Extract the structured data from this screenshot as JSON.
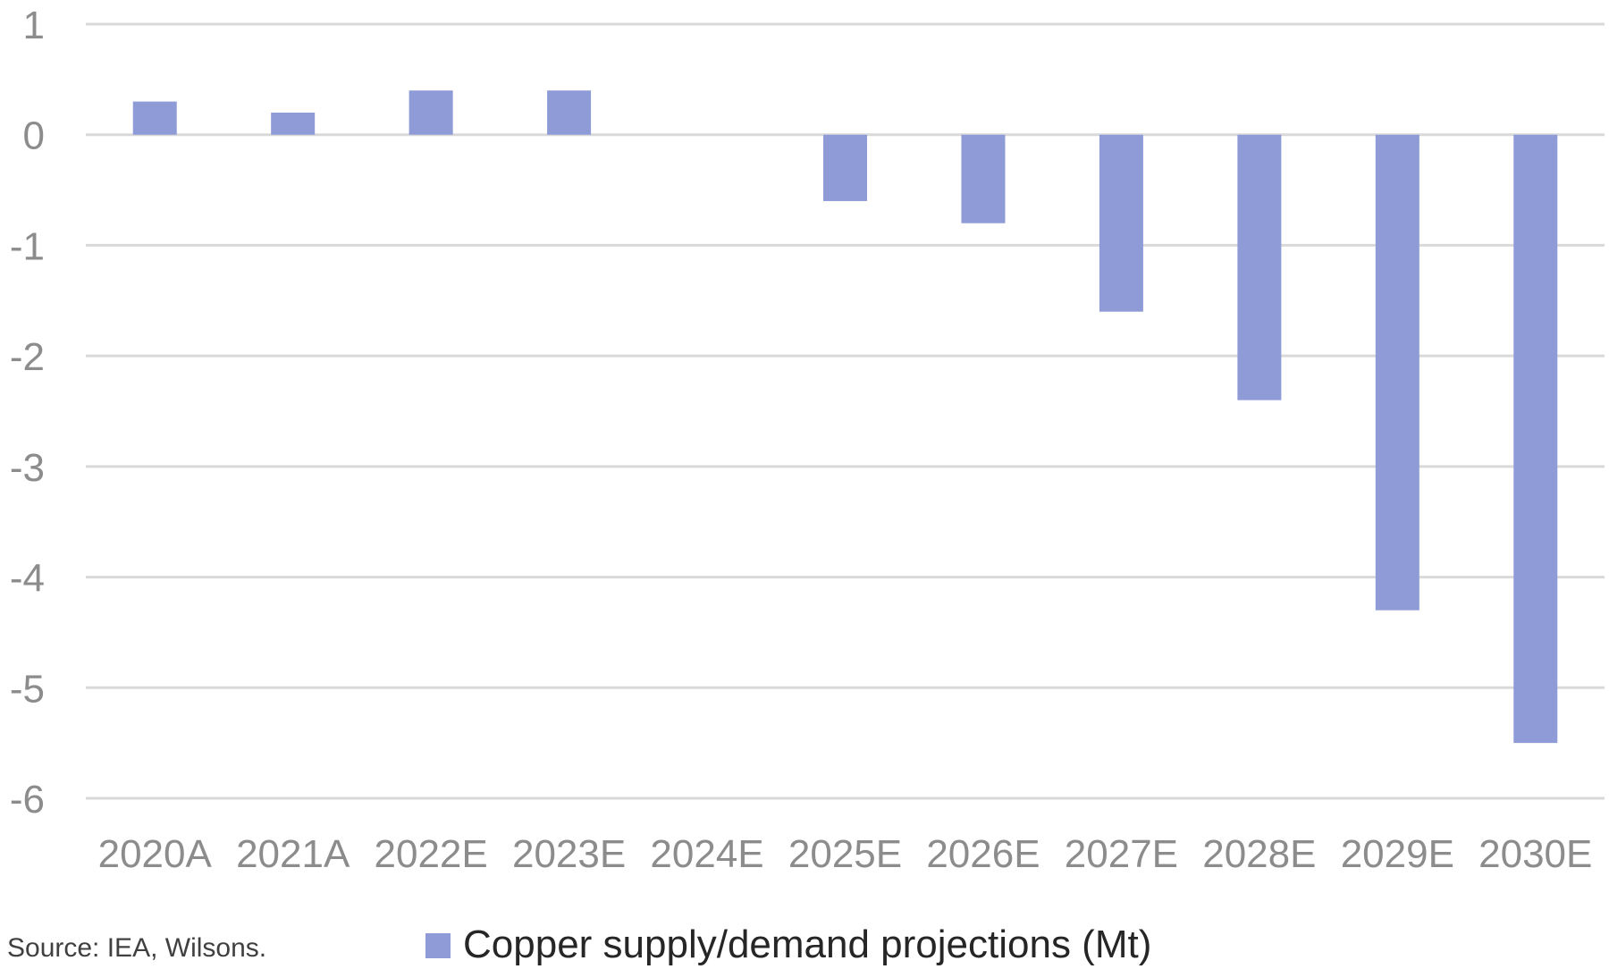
{
  "chart_data": {
    "type": "bar",
    "title": "",
    "xlabel": "",
    "ylabel": "",
    "categories": [
      "2020A",
      "2021A",
      "2022E",
      "2023E",
      "2024E",
      "2025E",
      "2026E",
      "2027E",
      "2028E",
      "2029E",
      "2030E"
    ],
    "series": [
      {
        "name": "Copper supply/demand projections (Mt)",
        "color": "#8e9bd7",
        "values": [
          0.3,
          0.2,
          0.4,
          0.4,
          0.0,
          -0.6,
          -0.8,
          -1.6,
          -2.4,
          -4.3,
          -5.5
        ]
      }
    ],
    "ylim": [
      -6,
      1
    ],
    "yticks": [
      1,
      0,
      -1,
      -2,
      -3,
      -4,
      -5,
      -6
    ],
    "grid": true,
    "legend_position": "bottom"
  },
  "source": "Source: IEA, Wilsons.",
  "colors": {
    "bar": "#8e9bd7",
    "grid": "#d9d9d9",
    "tick_text": "#8c8c8c"
  }
}
